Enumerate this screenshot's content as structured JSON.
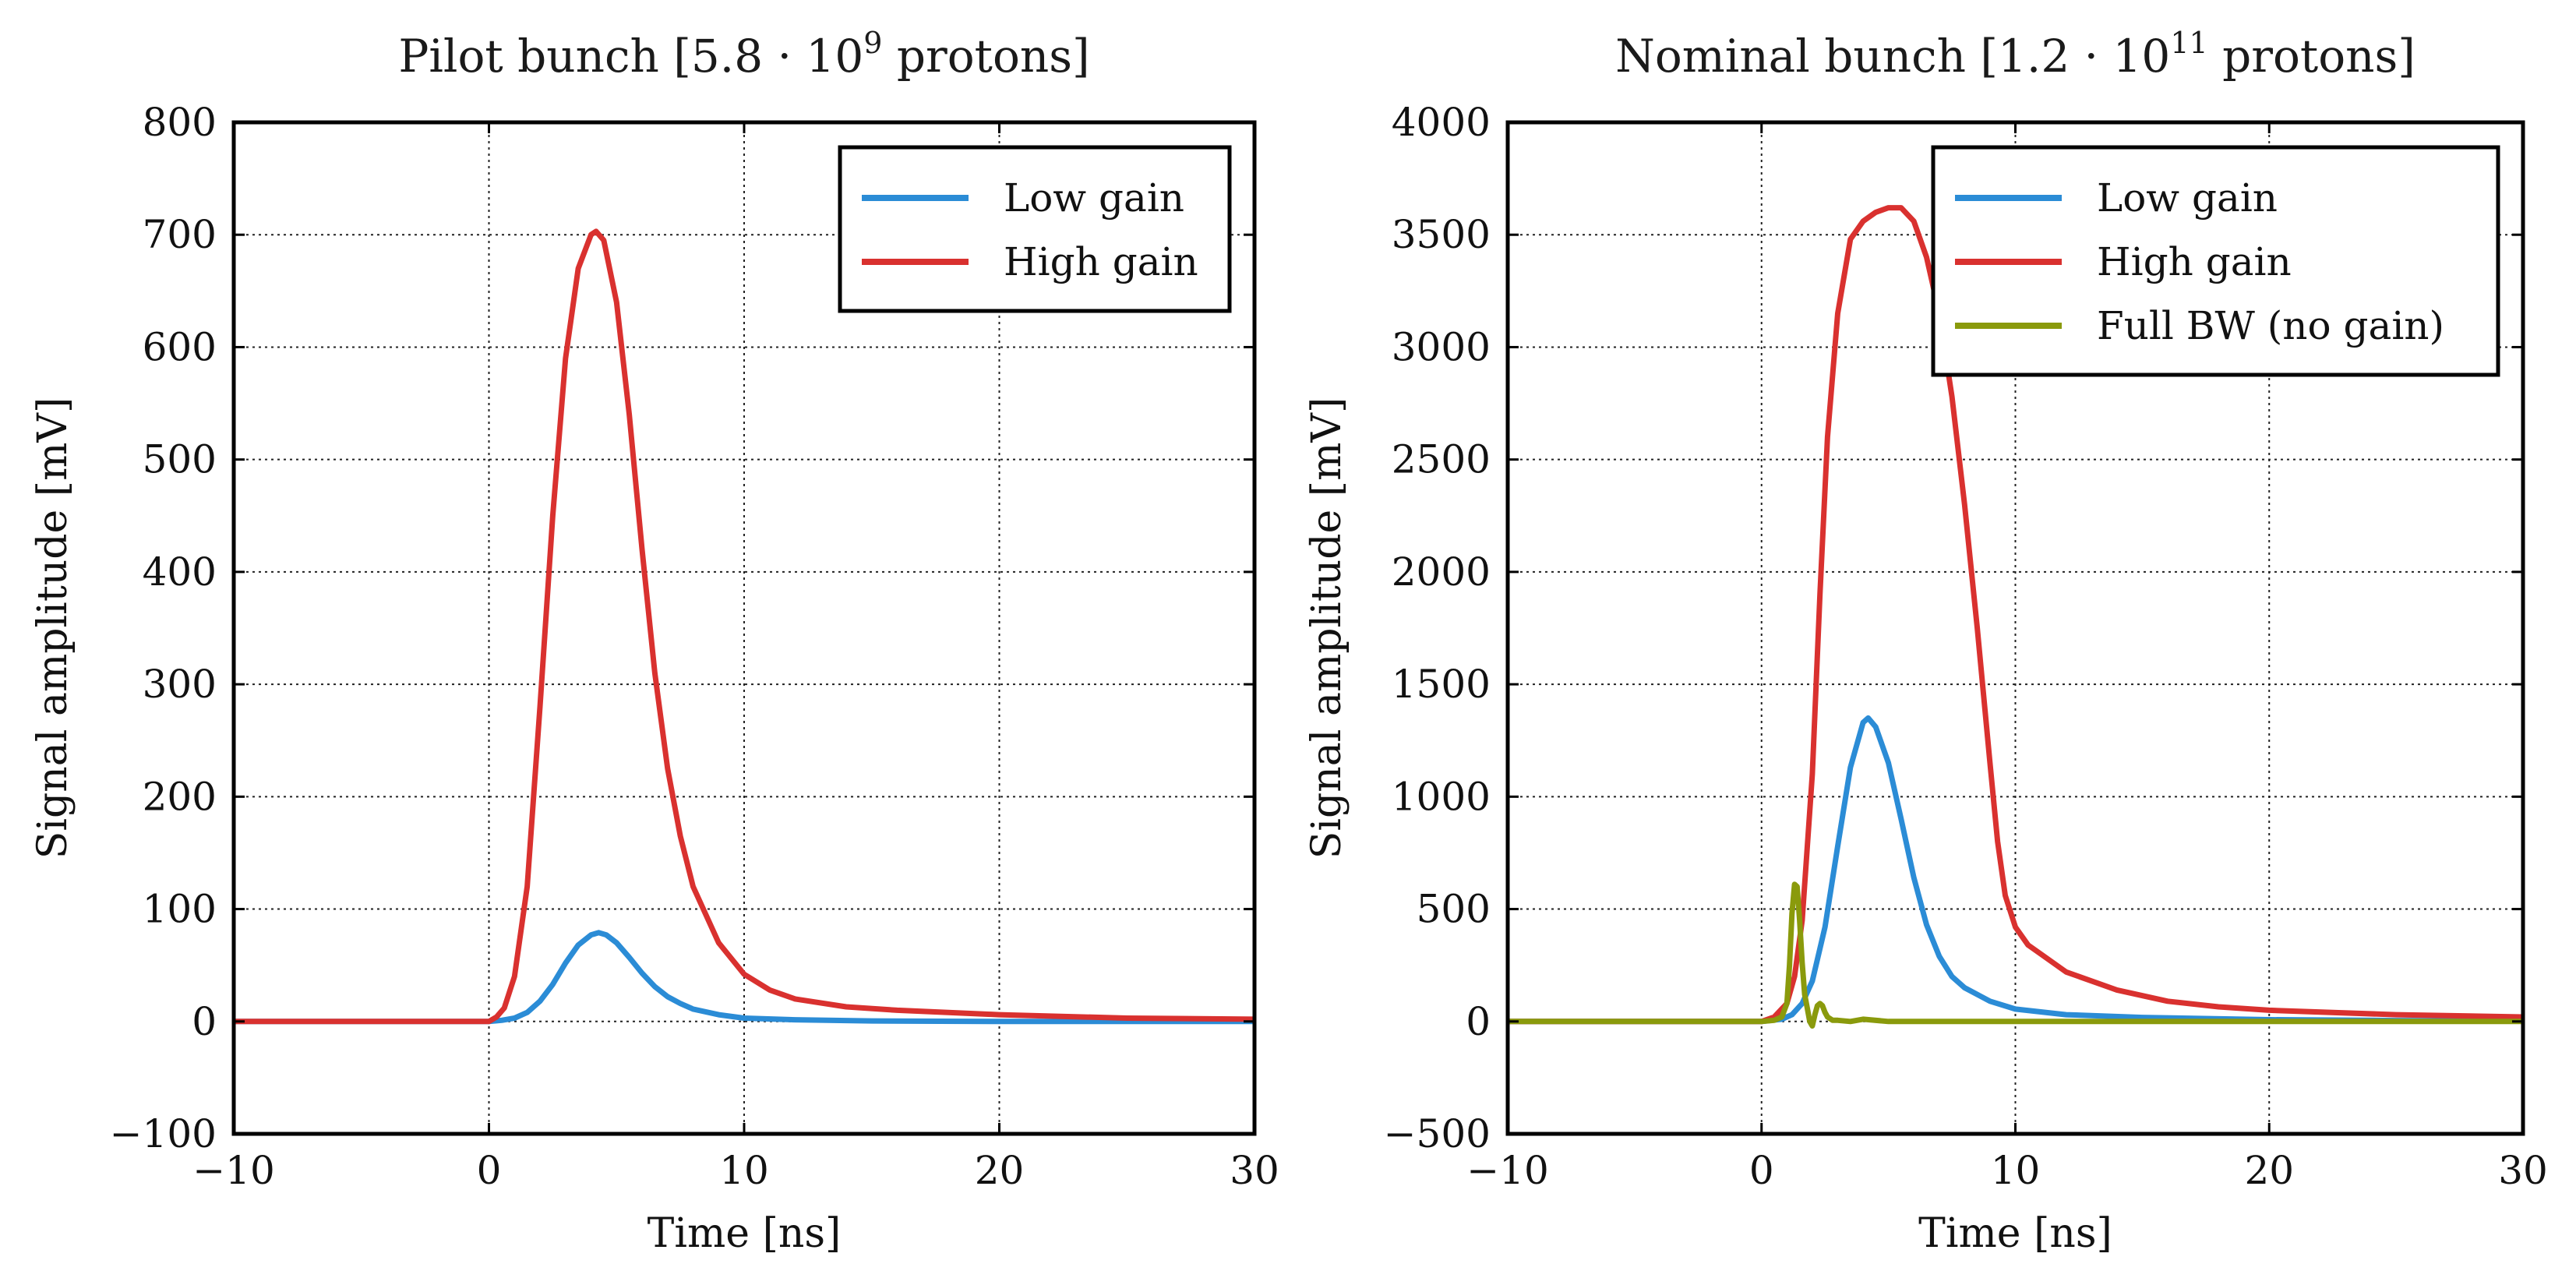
{
  "chart_data": [
    {
      "type": "line",
      "title_main": "Pilot bunch [5.8 · 10",
      "title_exp": "9",
      "title_tail": " protons]",
      "title": "Pilot bunch [5.8 · 10^9 protons]",
      "xlabel": "Time [ns]",
      "ylabel": "Signal amplitude [mV]",
      "xlim": [
        -10,
        30
      ],
      "ylim": [
        -100,
        800
      ],
      "xticks": [
        -10,
        0,
        10,
        20,
        30
      ],
      "xtick_labels": [
        "−10",
        "0",
        "10",
        "20",
        "30"
      ],
      "yticks": [
        -100,
        0,
        100,
        200,
        300,
        400,
        500,
        600,
        700,
        800
      ],
      "ytick_labels": [
        "−100",
        "0",
        "100",
        "200",
        "300",
        "400",
        "500",
        "600",
        "700",
        "800"
      ],
      "grid": true,
      "legend_position": "top-right",
      "series": [
        {
          "name": "Low gain",
          "color": "#2b8cd6",
          "x": [
            -10,
            -2,
            0,
            0.5,
            1,
            1.5,
            2,
            2.5,
            3,
            3.5,
            4,
            4.3,
            4.6,
            5,
            5.5,
            6,
            6.5,
            7,
            7.5,
            8,
            9,
            10,
            12,
            15,
            20,
            25,
            30
          ],
          "y": [
            0,
            0,
            0,
            1,
            3,
            8,
            18,
            33,
            52,
            68,
            77,
            79,
            77,
            70,
            57,
            43,
            31,
            22,
            16,
            11,
            6,
            3,
            1.5,
            0.5,
            0,
            0,
            0
          ]
        },
        {
          "name": "High gain",
          "color": "#d9312f",
          "x": [
            -10,
            -2,
            0,
            0.3,
            0.6,
            1,
            1.5,
            2,
            2.5,
            3,
            3.5,
            4,
            4.2,
            4.5,
            5,
            5.5,
            6,
            6.5,
            7,
            7.5,
            8,
            9,
            10,
            11,
            12,
            14,
            16,
            20,
            25,
            30
          ],
          "y": [
            0,
            0,
            0,
            4,
            12,
            40,
            120,
            280,
            450,
            590,
            670,
            700,
            703,
            695,
            640,
            540,
            420,
            310,
            225,
            165,
            120,
            70,
            42,
            28,
            20,
            13,
            10,
            6,
            3,
            2
          ]
        }
      ]
    },
    {
      "type": "line",
      "title_main": "Nominal bunch [1.2 · 10",
      "title_exp": "11",
      "title_tail": " protons]",
      "title": "Nominal bunch [1.2 · 10^11 protons]",
      "xlabel": "Time [ns]",
      "ylabel": "Signal amplitude [mV]",
      "xlim": [
        -10,
        30
      ],
      "ylim": [
        -500,
        4000
      ],
      "xticks": [
        -10,
        0,
        10,
        20,
        30
      ],
      "xtick_labels": [
        "−10",
        "0",
        "10",
        "20",
        "30"
      ],
      "yticks": [
        -500,
        0,
        500,
        1000,
        1500,
        2000,
        2500,
        3000,
        3500,
        4000
      ],
      "ytick_labels": [
        "−500",
        "0",
        "500",
        "1000",
        "1500",
        "2000",
        "2500",
        "3000",
        "3500",
        "4000"
      ],
      "grid": true,
      "legend_position": "top-right",
      "series": [
        {
          "name": "Low gain",
          "color": "#2b8cd6",
          "x": [
            -10,
            -2,
            0,
            0.8,
            1.2,
            1.6,
            2,
            2.5,
            3,
            3.5,
            4,
            4.2,
            4.5,
            5,
            5.5,
            6,
            6.5,
            7,
            7.5,
            8,
            9,
            10,
            12,
            15,
            20,
            25,
            30
          ],
          "y": [
            0,
            0,
            0,
            10,
            30,
            80,
            180,
            420,
            780,
            1130,
            1330,
            1350,
            1310,
            1150,
            900,
            640,
            430,
            290,
            200,
            150,
            90,
            55,
            30,
            18,
            8,
            4,
            2
          ]
        },
        {
          "name": "High gain",
          "color": "#d9312f",
          "x": [
            -10,
            -2,
            0,
            0.5,
            1,
            1.3,
            1.6,
            2,
            2.3,
            2.6,
            3,
            3.5,
            4,
            4.5,
            5,
            5.5,
            6,
            6.5,
            7,
            7.5,
            8,
            8.5,
            9,
            9.3,
            9.6,
            10,
            10.5,
            11,
            12,
            14,
            16,
            18,
            20,
            25,
            30
          ],
          "y": [
            0,
            0,
            0,
            20,
            80,
            200,
            450,
            1100,
            1900,
            2600,
            3150,
            3480,
            3560,
            3600,
            3620,
            3620,
            3560,
            3400,
            3150,
            2780,
            2300,
            1750,
            1150,
            800,
            560,
            420,
            340,
            300,
            220,
            140,
            90,
            65,
            50,
            30,
            20
          ]
        },
        {
          "name": "Full BW (no gain)",
          "color": "#8a9a0c",
          "x": [
            -10,
            -2,
            0,
            0.5,
            0.8,
            1,
            1.1,
            1.2,
            1.3,
            1.4,
            1.5,
            1.6,
            1.7,
            1.8,
            1.9,
            2,
            2.1,
            2.2,
            2.3,
            2.4,
            2.5,
            2.6,
            2.8,
            3,
            3.5,
            4,
            5,
            10,
            20,
            30
          ],
          "y": [
            0,
            0,
            0,
            5,
            20,
            80,
            250,
            480,
            610,
            600,
            450,
            260,
            120,
            60,
            0,
            -20,
            30,
            70,
            80,
            70,
            40,
            20,
            5,
            5,
            0,
            10,
            0,
            0,
            0,
            0
          ]
        }
      ]
    }
  ]
}
